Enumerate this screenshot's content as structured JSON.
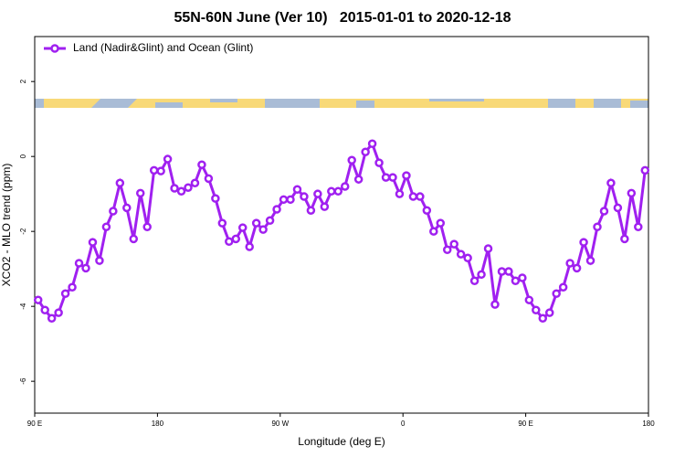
{
  "chart_data": {
    "type": "line",
    "title": "55N-60N June (Ver 10)   2015-01-01 to 2020-12-18",
    "xlabel": "Longitude (deg E)",
    "ylabel": "XCO2 - MLO trend (ppm)",
    "xlim": [
      90,
      540
    ],
    "ylim": [
      -6.85,
      3.2
    ],
    "xticks": [
      {
        "value": 90,
        "label": "90 E"
      },
      {
        "value": 180,
        "label": "180"
      },
      {
        "value": 270,
        "label": "90 W"
      },
      {
        "value": 360,
        "label": "0"
      },
      {
        "value": 450,
        "label": "90 E"
      },
      {
        "value": 540,
        "label": "180"
      }
    ],
    "yticks": [
      2,
      0,
      -2,
      -4,
      -6
    ],
    "legend": "top-left",
    "x": [
      92.5,
      97.5,
      102.5,
      107.5,
      112.5,
      117.5,
      122.5,
      127.5,
      132.5,
      137.5,
      142.5,
      147.5,
      152.5,
      157.5,
      162.5,
      167.5,
      172.5,
      177.5,
      182.5,
      187.5,
      192.5,
      197.5,
      202.5,
      207.5,
      212.5,
      217.5,
      222.5,
      227.5,
      232.5,
      237.5,
      242.5,
      247.5,
      252.5,
      257.5,
      262.5,
      267.5,
      272.5,
      277.5,
      282.5,
      287.5,
      292.5,
      297.5,
      302.5,
      307.5,
      312.5,
      317.5,
      322.5,
      327.5,
      332.5,
      337.5,
      342.5,
      347.5,
      352.5,
      357.5,
      362.5,
      367.5,
      372.5,
      377.5,
      382.5,
      387.5,
      392.5,
      397.5,
      402.5,
      407.5,
      412.5,
      417.5,
      422.5,
      427.5,
      432.5,
      437.5,
      442.5,
      447.5,
      452.5,
      457.5,
      462.5,
      467.5,
      472.5,
      477.5,
      482.5,
      487.5,
      492.5,
      497.5,
      502.5,
      507.5,
      512.5,
      517.5,
      522.5,
      527.5,
      532.5,
      537.5
    ],
    "series": [
      {
        "name": "Land (Nadir&Glint) and Ocean (Glint)",
        "color": "#a020f0",
        "values": [
          -3.83,
          -4.1,
          -4.32,
          -4.17,
          -3.66,
          -3.49,
          -2.85,
          -2.98,
          -2.29,
          -2.78,
          -1.88,
          -1.46,
          -0.71,
          -1.37,
          -2.2,
          -0.98,
          -1.88,
          -0.37,
          -0.39,
          -0.07,
          -0.85,
          -0.93,
          -0.83,
          -0.71,
          -0.22,
          -0.59,
          -1.12,
          -1.78,
          -2.27,
          -2.2,
          -1.9,
          -2.41,
          -1.78,
          -1.95,
          -1.71,
          -1.41,
          -1.15,
          -1.15,
          -0.88,
          -1.07,
          -1.44,
          -1.0,
          -1.34,
          -0.93,
          -0.93,
          -0.8,
          -0.1,
          -0.61,
          0.12,
          0.34,
          -0.17,
          -0.56,
          -0.56,
          -1.0,
          -0.51,
          -1.07,
          -1.07,
          -1.44,
          -2.0,
          -1.78,
          -2.49,
          -2.34,
          -2.61,
          -2.71,
          -3.32,
          -3.15,
          -2.46,
          -3.95,
          -3.07,
          -3.07,
          -3.32,
          -3.24,
          -3.83,
          -4.1,
          -4.32,
          -4.17,
          -3.66,
          -3.49,
          -2.85,
          -2.98,
          -2.29,
          -2.78,
          -1.88,
          -1.46,
          -0.71,
          -1.37,
          -2.2,
          -0.98,
          -1.88,
          -0.37
        ]
      }
    ]
  }
}
